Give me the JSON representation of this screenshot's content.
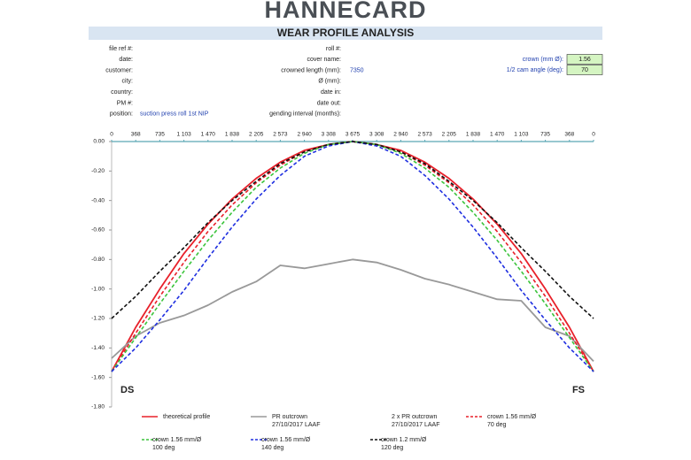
{
  "header": {
    "logo": "HANNECARD",
    "title": "WEAR PROFILE ANALYSIS",
    "left_fields": [
      {
        "label": "file ref #:"
      },
      {
        "label": "date:"
      },
      {
        "label": "customer:"
      },
      {
        "label": "city:"
      },
      {
        "label": "country:"
      },
      {
        "label": "PM #:"
      },
      {
        "label": "position:",
        "value": "suction press roll 1st NIP"
      }
    ],
    "middle_fields": [
      {
        "label": "roll #:"
      },
      {
        "label": "cover name:"
      },
      {
        "label": "crowned length (mm):",
        "value": 7350
      },
      {
        "label": "Ø (mm):"
      },
      {
        "label": "date in:"
      },
      {
        "label": "date out:"
      },
      {
        "label": "gending interval (months):"
      }
    ],
    "right_fields": [
      {
        "label": "crown (mm Ø):",
        "value": 1.56
      },
      {
        "label": "1/2 cam angle (deg):",
        "value": 70
      }
    ]
  },
  "chart_data": {
    "type": "line",
    "x": [
      0,
      367.5,
      735,
      1102.5,
      1470,
      1837.5,
      2205,
      2572.5,
      2940,
      3307.5,
      3675,
      4042.5,
      4410,
      4777.5,
      5145,
      5512.5,
      5880,
      6247.5,
      6615,
      6982.5,
      7350
    ],
    "xlim": [
      0,
      7350
    ],
    "xticks": [
      0,
      {
        "value": 367.5,
        "label": "368"
      },
      735,
      {
        "value": 1102.5,
        "label": "1 103"
      },
      {
        "value": 1470,
        "label": "1 470"
      },
      {
        "value": 1837.5,
        "label": "1 838"
      },
      {
        "value": 2205,
        "label": "2 205"
      },
      {
        "value": 2572.5,
        "label": "2 573"
      },
      {
        "value": 2940,
        "label": "2 940"
      },
      {
        "value": 3307.5,
        "label": "3 308"
      },
      {
        "value": 3675,
        "label": "3 675"
      },
      {
        "value": 4042.5,
        "label": "3 308"
      },
      {
        "value": 4410,
        "label": "2 940"
      },
      {
        "value": 4777.5,
        "label": "2 573"
      },
      {
        "value": 5145,
        "label": "2 205"
      },
      {
        "value": 5512.5,
        "label": "1 838"
      },
      {
        "value": 5880,
        "label": "1 470"
      },
      {
        "value": 6247.5,
        "label": "1 103"
      },
      {
        "value": 6615,
        "label": "735"
      },
      {
        "value": 6982.5,
        "label": "368"
      },
      {
        "value": 7350,
        "label": "0"
      }
    ],
    "ylim": [
      -1.8,
      0
    ],
    "yticks": [
      {
        "value": 0,
        "label": "0.00"
      },
      {
        "value": -0.2,
        "label": "-0.20"
      },
      {
        "value": -0.4,
        "label": "-0.40"
      },
      {
        "value": -0.6,
        "label": "-0.60"
      },
      {
        "value": -0.8,
        "label": "-0.80"
      },
      {
        "value": -1,
        "label": "-1.00"
      },
      {
        "value": -1.2,
        "label": "-1.20"
      },
      {
        "value": -1.4,
        "label": "-1.40"
      },
      {
        "value": -1.6,
        "label": "-1.60"
      },
      {
        "value": -1.8,
        "label": "-1.80"
      }
    ],
    "annotations": [
      "DS",
      "FS"
    ],
    "series": [
      {
        "name": "theoretical profile",
        "color": "#e8202a",
        "style": "solid",
        "values": [
          -1.56,
          -1.26,
          -1.0,
          -0.76,
          -0.56,
          -0.39,
          -0.25,
          -0.14,
          -0.06,
          -0.02,
          0,
          -0.02,
          -0.06,
          -0.14,
          -0.25,
          -0.39,
          -0.56,
          -0.76,
          -1.0,
          -1.26,
          -1.56
        ]
      },
      {
        "name": "PR outcrown\n27/10/2017 LAAF",
        "color": "#999999",
        "style": "solid",
        "values": [
          -1.47,
          -1.32,
          -1.23,
          -1.18,
          -1.11,
          -1.02,
          -0.95,
          -0.84,
          -0.86,
          -0.83,
          -0.8,
          -0.82,
          -0.87,
          -0.93,
          -0.97,
          -1.02,
          -1.07,
          -1.08,
          -1.26,
          -1.32,
          -1.49
        ]
      },
      {
        "name": "2 x PR outcrown\n27/10/2017 LAAF",
        "color": "#ffffff",
        "style": "solid",
        "values": [
          null,
          null,
          null,
          null,
          null,
          null,
          null,
          null,
          null,
          null,
          null,
          null,
          null,
          null,
          null,
          null,
          null,
          null,
          null,
          null,
          null
        ]
      },
      {
        "name": "crown 1.56 mm/Ø\n70 deg",
        "color": "#e8202a",
        "style": "dashed",
        "values": [
          -1.56,
          -1.3,
          -1.05,
          -0.82,
          -0.61,
          -0.43,
          -0.28,
          -0.16,
          -0.07,
          -0.02,
          0,
          -0.02,
          -0.07,
          -0.16,
          -0.28,
          -0.43,
          -0.61,
          -0.82,
          -1.05,
          -1.3,
          -1.56
        ]
      },
      {
        "name": "crown 1.56 mm/Ø\n100 deg",
        "color": "#3cc43c",
        "style": "dashed",
        "values": [
          -1.56,
          -1.33,
          -1.1,
          -0.88,
          -0.67,
          -0.48,
          -0.31,
          -0.18,
          -0.08,
          -0.02,
          0,
          -0.02,
          -0.08,
          -0.18,
          -0.31,
          -0.48,
          -0.67,
          -0.88,
          -1.1,
          -1.33,
          -1.56
        ]
      },
      {
        "name": "crown 1.56 mm/Ø\n140 deg",
        "color": "#1f2fe0",
        "style": "dashed",
        "values": [
          -1.56,
          -1.4,
          -1.21,
          -1.01,
          -0.79,
          -0.58,
          -0.39,
          -0.23,
          -0.1,
          -0.03,
          0,
          -0.03,
          -0.1,
          -0.23,
          -0.39,
          -0.58,
          -0.79,
          -1.01,
          -1.21,
          -1.4,
          -1.56
        ]
      },
      {
        "name": "crown 1.2 mm/Ø\n120 deg",
        "color": "#111111",
        "style": "dashed",
        "values": [
          -1.2,
          -1.05,
          -0.88,
          -0.72,
          -0.55,
          -0.4,
          -0.27,
          -0.15,
          -0.07,
          -0.02,
          0,
          -0.02,
          -0.07,
          -0.15,
          -0.27,
          -0.4,
          -0.55,
          -0.72,
          -0.88,
          -1.05,
          -1.2
        ]
      }
    ]
  }
}
